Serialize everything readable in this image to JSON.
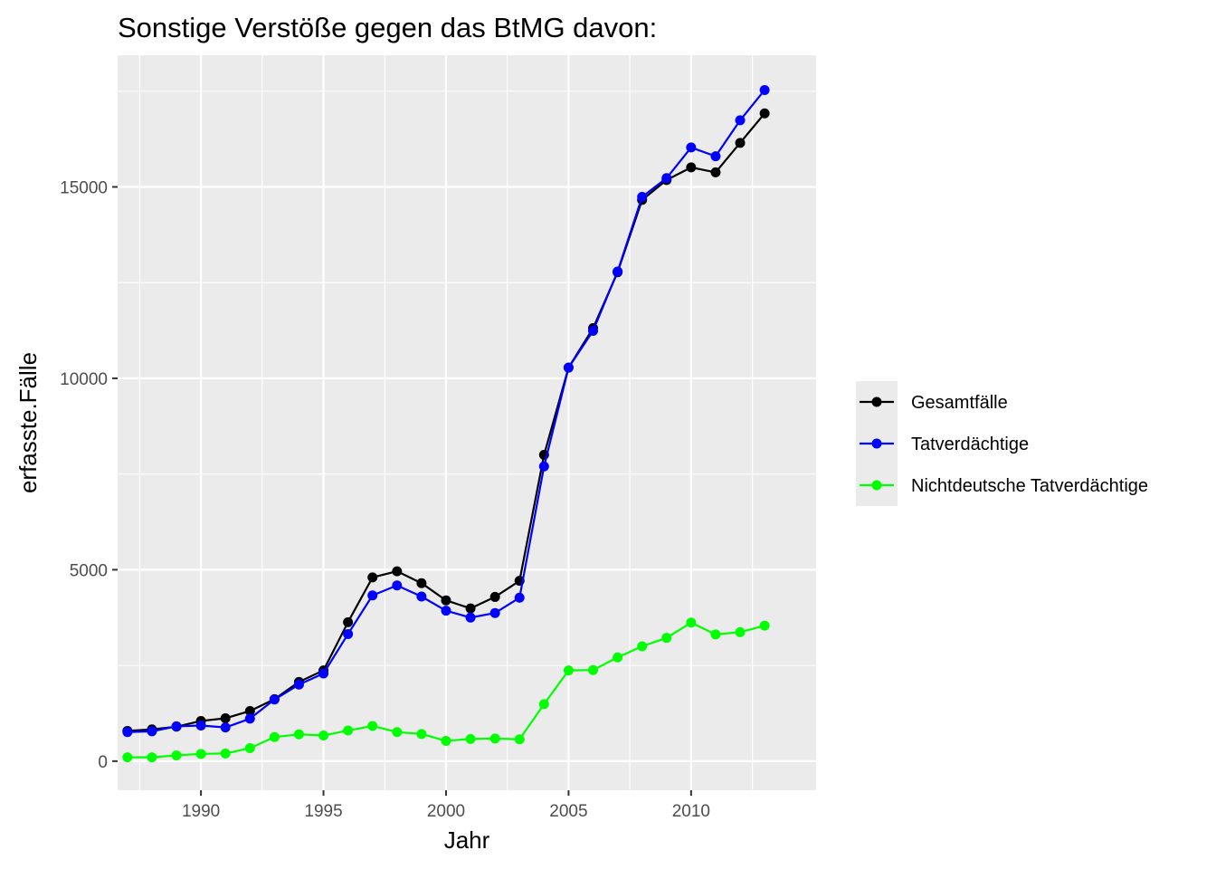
{
  "chart_data": {
    "type": "line",
    "title": "Sonstige Verstöße gegen das BtMG davon:",
    "xlabel": "Jahr",
    "ylabel": "erfasste.Fälle",
    "x": [
      1987,
      1988,
      1989,
      1990,
      1991,
      1992,
      1993,
      1994,
      1995,
      1996,
      1997,
      1998,
      1999,
      2000,
      2001,
      2002,
      2003,
      2004,
      2005,
      2006,
      2007,
      2008,
      2009,
      2010,
      2011,
      2012,
      2013
    ],
    "xlim": [
      1986.6,
      2015.1
    ],
    "ylim": [
      -760,
      18440
    ],
    "x_ticks": [
      1990,
      1995,
      2000,
      2005,
      2010
    ],
    "x_tick_labels": [
      "1990",
      "1995",
      "2000",
      "2005",
      "2010"
    ],
    "y_ticks": [
      0,
      5000,
      10000,
      15000
    ],
    "y_tick_labels": [
      "0",
      "5000",
      "10000",
      "15000"
    ],
    "grid": true,
    "legend_position": "right",
    "series": [
      {
        "name": "Gesamtfälle",
        "color": "#000000",
        "values": [
          790,
          830,
          900,
          1050,
          1120,
          1310,
          1620,
          2070,
          2370,
          3630,
          4800,
          4960,
          4650,
          4200,
          3990,
          4290,
          4710,
          8000,
          10280,
          11310,
          12770,
          14660,
          15180,
          15510,
          15380,
          16150,
          16920
        ]
      },
      {
        "name": "Tatverdächtige",
        "color": "#0000ff",
        "values": [
          760,
          780,
          910,
          930,
          880,
          1110,
          1610,
          2000,
          2290,
          3320,
          4330,
          4590,
          4300,
          3930,
          3750,
          3870,
          4270,
          7700,
          10280,
          11240,
          12790,
          14740,
          15230,
          16030,
          15800,
          16740,
          17530
        ]
      },
      {
        "name": "Nichtdeutsche Tatverdächtige",
        "color": "#00ff00",
        "values": [
          100,
          100,
          150,
          190,
          200,
          340,
          630,
          700,
          670,
          800,
          920,
          760,
          710,
          530,
          580,
          590,
          570,
          1490,
          2370,
          2380,
          2710,
          3000,
          3220,
          3620,
          3310,
          3370,
          3540
        ]
      }
    ]
  }
}
